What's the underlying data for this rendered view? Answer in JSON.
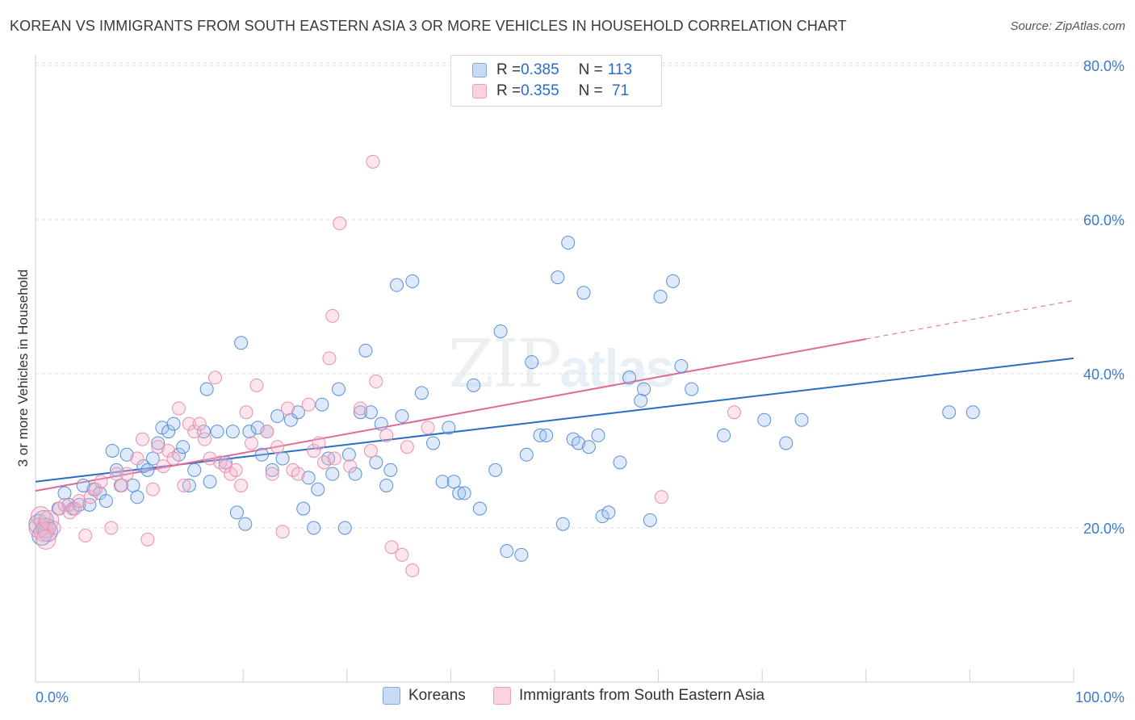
{
  "title": "KOREAN VS IMMIGRANTS FROM SOUTH EASTERN ASIA 3 OR MORE VEHICLES IN HOUSEHOLD CORRELATION CHART",
  "source": "Source: ZipAtlas.com",
  "watermark": {
    "main": "ZIP",
    "sub": "atlas"
  },
  "legend": {
    "rows": [
      {
        "r_label": "R = ",
        "r_value": "0.385",
        "n_label": "N = ",
        "n_value": "113",
        "color": "#a9c8f0"
      },
      {
        "r_label": "R = ",
        "r_value": "0.355",
        "n_label": "N = ",
        "n_value": " 71",
        "color": "#f5b8cb"
      }
    ]
  },
  "colors": {
    "blue": "#5b8fd6",
    "blue_fill": "rgba(160,195,240,0.35)",
    "blue_line": "#2b6cc4",
    "pink": "#e890ad",
    "pink_fill": "rgba(245,180,200,0.35)",
    "pink_line": "#e06a97",
    "axis_text": "#3d7acb"
  },
  "chart_data": {
    "type": "scatter",
    "title": "KOREAN VS IMMIGRANTS FROM SOUTH EASTERN ASIA 3 OR MORE VEHICLES IN HOUSEHOLD CORRELATION CHART",
    "xlabel": "",
    "ylabel": "3 or more Vehicles in Household",
    "xlim": [
      0,
      100
    ],
    "ylim": [
      0,
      85
    ],
    "x_tick_labels": [
      "0.0%",
      "100.0%"
    ],
    "y_ticks": [
      20,
      40,
      60,
      80
    ],
    "y_tick_labels": [
      "20.0%",
      "40.0%",
      "60.0%",
      "80.0%"
    ],
    "grid": true,
    "legend_position": "top-center",
    "series": [
      {
        "name": "Koreans",
        "color": "#5b8fd6",
        "trend": {
          "x": [
            0,
            100
          ],
          "y": [
            26.0,
            42.0
          ]
        },
        "points": [
          [
            0.3,
            20.5
          ],
          [
            0.6,
            19.0
          ],
          [
            0.8,
            21.0
          ],
          [
            1.0,
            20.0
          ],
          [
            1.2,
            19.5
          ],
          [
            2.2,
            22.5
          ],
          [
            2.8,
            24.5
          ],
          [
            3.2,
            23.0
          ],
          [
            3.6,
            22.5
          ],
          [
            4.2,
            23.0
          ],
          [
            4.6,
            25.5
          ],
          [
            5.2,
            23.0
          ],
          [
            5.6,
            25.0
          ],
          [
            6.2,
            24.5
          ],
          [
            6.8,
            23.5
          ],
          [
            7.4,
            30.0
          ],
          [
            7.8,
            27.5
          ],
          [
            8.2,
            25.5
          ],
          [
            8.8,
            29.5
          ],
          [
            9.4,
            25.5
          ],
          [
            9.8,
            24.0
          ],
          [
            10.4,
            28.0
          ],
          [
            10.8,
            27.5
          ],
          [
            11.3,
            29.0
          ],
          [
            11.8,
            31.0
          ],
          [
            12.2,
            33.0
          ],
          [
            12.8,
            32.5
          ],
          [
            13.3,
            33.5
          ],
          [
            13.8,
            29.5
          ],
          [
            14.2,
            30.5
          ],
          [
            14.8,
            25.5
          ],
          [
            15.3,
            27.5
          ],
          [
            16.2,
            32.5
          ],
          [
            16.5,
            38.0
          ],
          [
            16.8,
            26.0
          ],
          [
            17.5,
            32.5
          ],
          [
            18.3,
            28.5
          ],
          [
            19.0,
            32.5
          ],
          [
            19.4,
            22.0
          ],
          [
            19.8,
            44.0
          ],
          [
            20.2,
            20.5
          ],
          [
            20.6,
            32.5
          ],
          [
            21.4,
            33.0
          ],
          [
            21.8,
            29.5
          ],
          [
            22.3,
            32.5
          ],
          [
            22.8,
            27.5
          ],
          [
            23.3,
            34.5
          ],
          [
            23.8,
            29.0
          ],
          [
            24.6,
            34.0
          ],
          [
            25.3,
            35.0
          ],
          [
            25.8,
            22.5
          ],
          [
            26.3,
            26.5
          ],
          [
            26.8,
            20.0
          ],
          [
            27.2,
            25.0
          ],
          [
            27.6,
            36.0
          ],
          [
            28.2,
            29.0
          ],
          [
            28.6,
            27.0
          ],
          [
            29.2,
            38.0
          ],
          [
            29.8,
            20.0
          ],
          [
            30.2,
            29.5
          ],
          [
            30.8,
            27.0
          ],
          [
            31.3,
            35.0
          ],
          [
            31.8,
            43.0
          ],
          [
            32.3,
            35.0
          ],
          [
            32.8,
            28.5
          ],
          [
            33.3,
            33.5
          ],
          [
            33.8,
            25.5
          ],
          [
            34.2,
            27.5
          ],
          [
            34.8,
            51.5
          ],
          [
            35.3,
            34.5
          ],
          [
            36.3,
            52.0
          ],
          [
            37.2,
            37.5
          ],
          [
            38.3,
            31.0
          ],
          [
            39.2,
            26.0
          ],
          [
            39.8,
            33.0
          ],
          [
            40.3,
            26.0
          ],
          [
            40.8,
            24.5
          ],
          [
            41.3,
            24.5
          ],
          [
            42.2,
            38.5
          ],
          [
            42.8,
            22.5
          ],
          [
            44.3,
            27.5
          ],
          [
            44.8,
            45.5
          ],
          [
            45.4,
            17.0
          ],
          [
            46.8,
            16.5
          ],
          [
            47.3,
            29.5
          ],
          [
            47.8,
            41.5
          ],
          [
            48.6,
            32.0
          ],
          [
            49.2,
            32.0
          ],
          [
            50.3,
            52.5
          ],
          [
            50.8,
            20.5
          ],
          [
            51.3,
            57.0
          ],
          [
            51.8,
            31.5
          ],
          [
            52.3,
            31.0
          ],
          [
            52.8,
            50.5
          ],
          [
            53.3,
            30.5
          ],
          [
            54.2,
            32.0
          ],
          [
            54.6,
            21.5
          ],
          [
            55.2,
            22.0
          ],
          [
            56.3,
            28.5
          ],
          [
            57.2,
            39.5
          ],
          [
            58.3,
            36.5
          ],
          [
            58.6,
            38.0
          ],
          [
            59.2,
            21.0
          ],
          [
            60.2,
            50.0
          ],
          [
            61.4,
            52.0
          ],
          [
            62.2,
            41.0
          ],
          [
            63.2,
            38.0
          ],
          [
            66.3,
            32.0
          ],
          [
            70.2,
            34.0
          ],
          [
            72.3,
            31.0
          ],
          [
            73.8,
            34.0
          ],
          [
            90.3,
            35.0
          ],
          [
            88.0,
            35.0
          ]
        ]
      },
      {
        "name": "Immigrants from South Eastern Asia",
        "color": "#e890ad",
        "trend": {
          "x": [
            0,
            80
          ],
          "y": [
            24.8,
            44.5
          ],
          "dashed_to": [
            100,
            49.5
          ]
        },
        "points": [
          [
            0.3,
            20.0
          ],
          [
            0.5,
            21.5
          ],
          [
            0.8,
            19.5
          ],
          [
            1.0,
            18.5
          ],
          [
            1.3,
            21.0
          ],
          [
            1.8,
            20.0
          ],
          [
            2.3,
            22.5
          ],
          [
            2.8,
            23.0
          ],
          [
            3.3,
            22.0
          ],
          [
            3.8,
            22.5
          ],
          [
            4.2,
            23.5
          ],
          [
            4.8,
            19.0
          ],
          [
            5.3,
            24.0
          ],
          [
            5.8,
            25.0
          ],
          [
            6.3,
            26.0
          ],
          [
            7.3,
            20.0
          ],
          [
            7.8,
            27.0
          ],
          [
            8.3,
            25.5
          ],
          [
            8.8,
            27.0
          ],
          [
            9.8,
            29.0
          ],
          [
            10.3,
            31.5
          ],
          [
            10.8,
            18.5
          ],
          [
            11.3,
            25.0
          ],
          [
            11.8,
            30.5
          ],
          [
            12.3,
            28.0
          ],
          [
            12.8,
            30.0
          ],
          [
            13.3,
            29.0
          ],
          [
            13.8,
            35.5
          ],
          [
            14.3,
            25.5
          ],
          [
            14.8,
            33.5
          ],
          [
            15.3,
            32.5
          ],
          [
            15.8,
            33.5
          ],
          [
            16.3,
            31.5
          ],
          [
            16.8,
            29.0
          ],
          [
            17.3,
            39.5
          ],
          [
            17.8,
            28.5
          ],
          [
            18.3,
            28.0
          ],
          [
            18.8,
            27.0
          ],
          [
            19.3,
            27.5
          ],
          [
            19.8,
            25.5
          ],
          [
            20.3,
            35.0
          ],
          [
            20.8,
            31.0
          ],
          [
            21.3,
            38.5
          ],
          [
            22.3,
            32.5
          ],
          [
            22.8,
            27.0
          ],
          [
            23.3,
            30.5
          ],
          [
            23.8,
            19.5
          ],
          [
            24.3,
            35.5
          ],
          [
            24.8,
            27.5
          ],
          [
            25.3,
            27.0
          ],
          [
            26.3,
            36.0
          ],
          [
            26.8,
            30.0
          ],
          [
            27.3,
            31.0
          ],
          [
            27.8,
            28.5
          ],
          [
            28.3,
            42.0
          ],
          [
            28.6,
            47.5
          ],
          [
            28.8,
            29.0
          ],
          [
            29.3,
            59.5
          ],
          [
            30.3,
            28.0
          ],
          [
            31.3,
            35.5
          ],
          [
            32.3,
            30.0
          ],
          [
            32.8,
            39.0
          ],
          [
            33.8,
            32.0
          ],
          [
            34.3,
            17.5
          ],
          [
            35.3,
            16.5
          ],
          [
            35.8,
            30.5
          ],
          [
            36.3,
            14.5
          ],
          [
            32.5,
            67.5
          ],
          [
            60.3,
            24.0
          ],
          [
            67.3,
            35.0
          ],
          [
            37.8,
            33.0
          ]
        ]
      }
    ]
  },
  "bottom_legend": [
    {
      "label": "Koreans",
      "color": "#a9c8f0"
    },
    {
      "label": "Immigrants from South Eastern Asia",
      "color": "#f5b8cb"
    }
  ]
}
